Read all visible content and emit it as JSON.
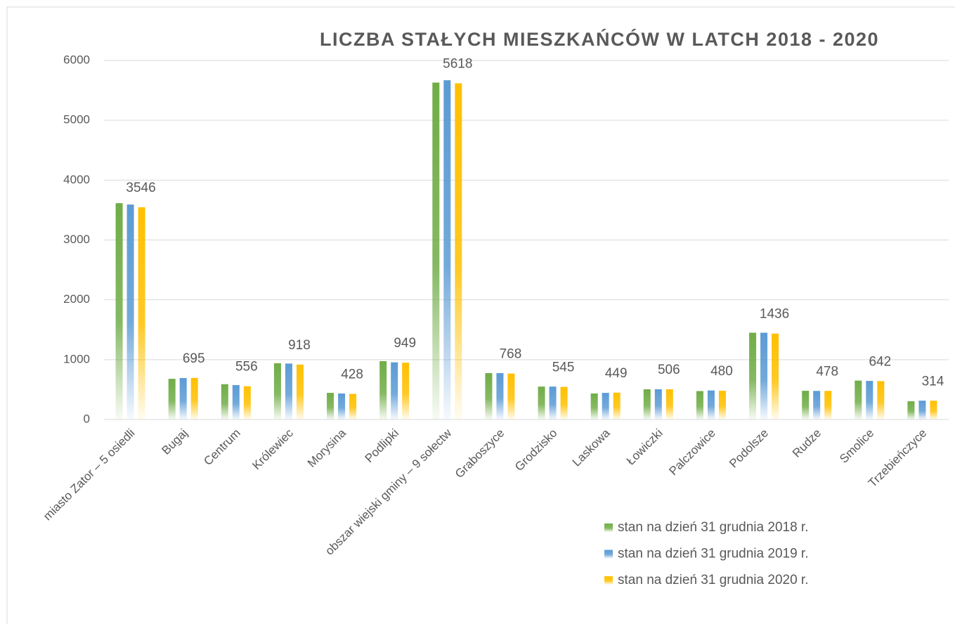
{
  "chart_data": {
    "type": "bar",
    "title": "LICZBA STAŁYCH MIESZKAŃCÓW W LATCH 2018 - 2020",
    "categories": [
      "miasto Zator – 5 osiedli",
      "Bugaj",
      "Centrum",
      "Królewiec",
      "Morysina",
      "Podlipki",
      "obszar wiejski gminy – 9 sołectw",
      "Graboszyce",
      "Grodzisko",
      "Laskowa",
      "Łowiczki",
      "Palczowice",
      "Podolsze",
      "Rudze",
      "Smolice",
      "Trzebieńczyce"
    ],
    "series": [
      {
        "name": "stan na dzień 31 grudnia 2018 r.",
        "color": "#70ad47",
        "show_labels": false,
        "values": [
          3615,
          680,
          590,
          940,
          445,
          975,
          5630,
          775,
          550,
          435,
          505,
          475,
          1450,
          480,
          650,
          305
        ]
      },
      {
        "name": "stan na dzień  31 grudnia 2019 r.",
        "color": "#5b9bd5",
        "show_labels": false,
        "values": [
          3592,
          693,
          575,
          935,
          435,
          955,
          5669,
          775,
          550,
          445,
          505,
          485,
          1450,
          478,
          645,
          315
        ]
      },
      {
        "name": "stan na dzień  31 grudnia 2020 r.",
        "color": "#ffc000",
        "show_labels": true,
        "values": [
          3546,
          695,
          556,
          918,
          428,
          949,
          5618,
          768,
          545,
          449,
          506,
          480,
          1436,
          478,
          642,
          314
        ]
      }
    ],
    "ylim": [
      0,
      6000
    ],
    "yticks": [
      0,
      1000,
      2000,
      3000,
      4000,
      5000,
      6000
    ],
    "grid": true
  }
}
